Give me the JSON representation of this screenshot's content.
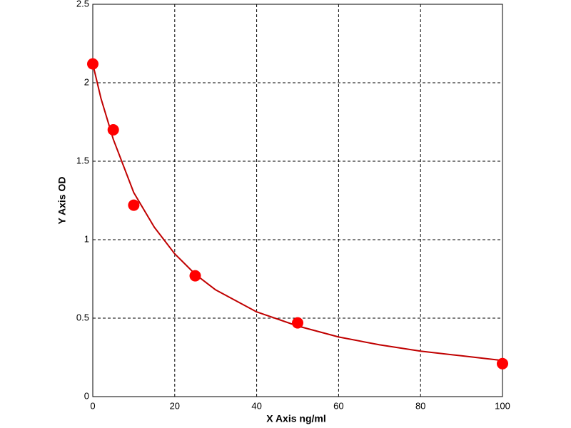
{
  "chart_data": {
    "type": "scatter",
    "xlabel": "X Axis ng/ml",
    "ylabel": "Y Axis OD",
    "x": [
      0,
      5,
      10,
      25,
      50,
      100
    ],
    "y": [
      2.12,
      1.7,
      1.22,
      0.77,
      0.47,
      0.21
    ],
    "color": "#ff0000",
    "curve": {
      "color": "#c00000",
      "x": [
        0,
        2,
        5,
        10,
        15,
        20,
        25,
        30,
        40,
        50,
        60,
        70,
        80,
        90,
        100
      ],
      "y": [
        2.12,
        1.9,
        1.64,
        1.3,
        1.08,
        0.91,
        0.78,
        0.68,
        0.54,
        0.45,
        0.38,
        0.33,
        0.29,
        0.26,
        0.23
      ]
    },
    "xlim": [
      0,
      100
    ],
    "xticks": [
      0,
      20,
      40,
      60,
      80,
      100
    ],
    "ylim": [
      0,
      2.5
    ],
    "yticks": [
      0,
      0.5,
      1,
      1.5,
      2,
      2.5
    ],
    "grid": true
  }
}
